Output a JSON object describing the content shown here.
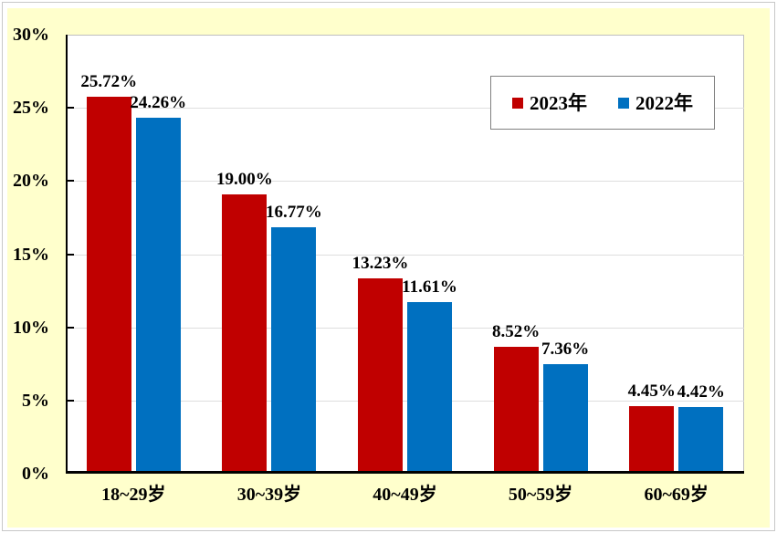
{
  "chart_data": {
    "type": "bar",
    "title": "",
    "categories": [
      "18~29岁",
      "30~39岁",
      "40~49岁",
      "50~59岁",
      "60~69岁"
    ],
    "series": [
      {
        "name": "2023年",
        "color": "#C00000",
        "values": [
          25.72,
          19.0,
          13.23,
          8.52,
          4.45
        ],
        "labels": [
          "25.72%",
          "19.00%",
          "13.23%",
          "8.52%",
          "4.45%"
        ]
      },
      {
        "name": "2022年",
        "color": "#0070C0",
        "values": [
          24.26,
          16.77,
          11.61,
          7.36,
          4.42
        ],
        "labels": [
          "24.26%",
          "16.77%",
          "11.61%",
          "7.36%",
          "4.42%"
        ]
      }
    ],
    "xlabel": "",
    "ylabel": "",
    "ylim": [
      0,
      30
    ],
    "y_tick_step": 5,
    "y_tick_labels": [
      "0%",
      "5%",
      "10%",
      "15%",
      "20%",
      "25%",
      "30%"
    ],
    "grid": true,
    "legend_position": "top-right",
    "colors": {
      "background": "#FFFFCC",
      "plot_background": "#FFFFFF",
      "grid_line": "#DEDEDE",
      "axis_line": "#000000",
      "plot_border": "#BFBFBF",
      "legend_border": "#808080",
      "text": "#000000"
    }
  }
}
